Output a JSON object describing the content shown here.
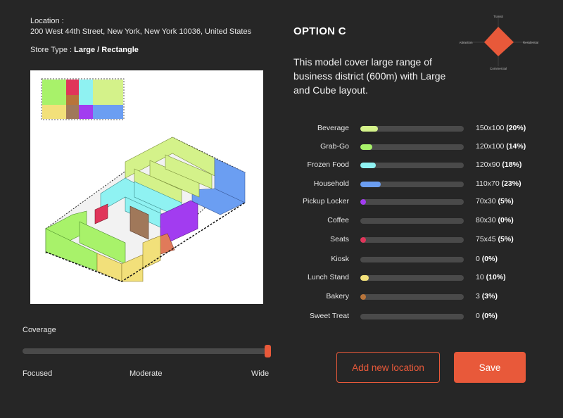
{
  "location": {
    "label": "Location :",
    "address": "200 West 44th Street, New York, New York 10036, United States"
  },
  "store_type": {
    "label": "Store Type :",
    "value": "Large / Rectangle"
  },
  "option": {
    "title": "OPTION C",
    "description": "This model cover large range of business district (600m) with Large and Cube layout."
  },
  "radar": {
    "axes": [
      "Transit",
      "Residential",
      "Commercial",
      "Attraction"
    ],
    "color": "#e8593a"
  },
  "categories": [
    {
      "name": "Beverage",
      "size": "150x100",
      "percent": "(20%)",
      "fraction": 0.2,
      "color": "#d4f28a"
    },
    {
      "name": "Grab-Go",
      "size": "120x100",
      "percent": "(14%)",
      "fraction": 0.14,
      "color": "#a8f26a"
    },
    {
      "name": "Frozen Food",
      "size": "120x90",
      "percent": "(18%)",
      "fraction": 0.18,
      "color": "#8ff2f2"
    },
    {
      "name": "Household",
      "size": "110x70",
      "percent": "(23%)",
      "fraction": 0.23,
      "color": "#6b9ef2"
    },
    {
      "name": "Pickup Locker",
      "size": "70x30",
      "percent": "(5%)",
      "fraction": 0.05,
      "color": "#a23cf0"
    },
    {
      "name": "Coffee",
      "size": "80x30",
      "percent": "(0%)",
      "fraction": 0.0,
      "color": "#8a5a3a"
    },
    {
      "name": "Seats",
      "size": "75x45",
      "percent": "(5%)",
      "fraction": 0.05,
      "color": "#e0355a"
    },
    {
      "name": "Kiosk",
      "size": "0",
      "percent": "(0%)",
      "fraction": 0.0,
      "color": "#888888"
    },
    {
      "name": "Lunch Stand",
      "size": "10",
      "percent": "(10%)",
      "fraction": 0.1,
      "color": "#f2e07a"
    },
    {
      "name": "Bakery",
      "size": "3",
      "percent": "(3%)",
      "fraction": 0.03,
      "color": "#b8743a"
    },
    {
      "name": "Sweet Treat",
      "size": "0",
      "percent": "(0%)",
      "fraction": 0.0,
      "color": "#888888"
    }
  ],
  "coverage": {
    "label": "Coverage",
    "level": 1.0,
    "ticks": [
      "Focused",
      "Moderate",
      "Wide"
    ]
  },
  "buttons": {
    "add_location": "Add new location",
    "save": "Save"
  },
  "accent": "#e8593a"
}
